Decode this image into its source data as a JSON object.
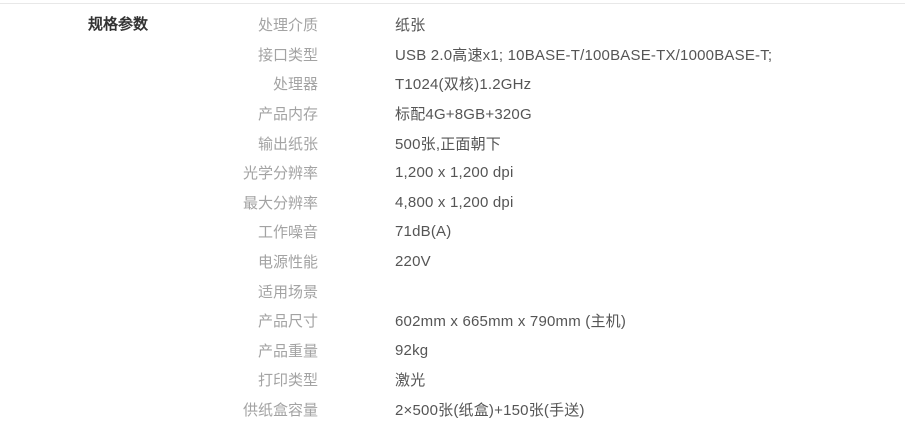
{
  "section": {
    "title": "规格参数"
  },
  "rows": [
    {
      "label": "处理介质",
      "value": "纸张"
    },
    {
      "label": "接口类型",
      "value": "USB 2.0高速x1; 10BASE-T/100BASE-TX/1000BASE-T;"
    },
    {
      "label": "处理器",
      "value": "T1024(双核)1.2GHz"
    },
    {
      "label": "产品内存",
      "value": "标配4G+8GB+320G"
    },
    {
      "label": "输出纸张",
      "value": "500张,正面朝下"
    },
    {
      "label": "光学分辨率",
      "value": "1,200 x 1,200 dpi"
    },
    {
      "label": "最大分辨率",
      "value": "4,800 x 1,200 dpi"
    },
    {
      "label": "工作噪音",
      "value": "71dB(A)"
    },
    {
      "label": "电源性能",
      "value": "220V"
    },
    {
      "label": "适用场景",
      "value": ""
    },
    {
      "label": "产品尺寸",
      "value": "602mm x 665mm x 790mm (主机)"
    },
    {
      "label": "产品重量",
      "value": "92kg"
    },
    {
      "label": "打印类型",
      "value": "激光"
    },
    {
      "label": "供纸盒容量",
      "value": "2×500张(纸盒)+150张(手送)"
    }
  ],
  "colors": {
    "background": "#ffffff",
    "divider": "#e8e8e8",
    "title": "#333333",
    "label": "#a3a3a3",
    "value": "#555555"
  }
}
